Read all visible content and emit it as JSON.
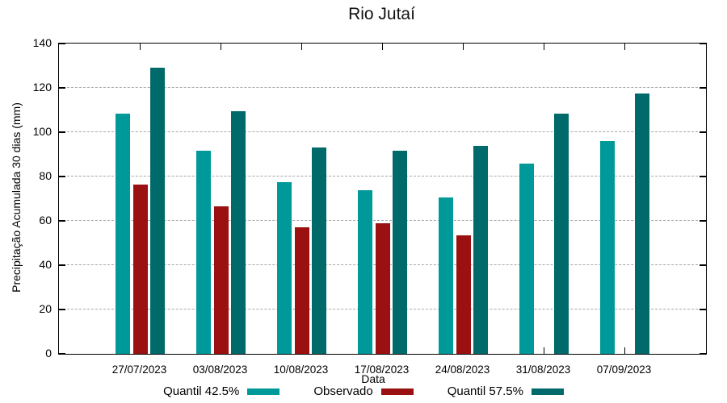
{
  "title": "Rio Jutaí",
  "chart_data": {
    "type": "bar",
    "title": "Rio Jutaí",
    "xlabel": "Data",
    "ylabel": "Precipitação Acumulada 30 dias (mm)",
    "ylim": [
      0,
      140
    ],
    "y_ticks": [
      0,
      20,
      40,
      60,
      80,
      100,
      120,
      140
    ],
    "grid": "horizontal dashed gridlines at each 20 mm",
    "legend_position": "bottom center, below x axis",
    "categories": [
      "27/07/2023",
      "03/08/2023",
      "10/08/2023",
      "17/08/2023",
      "24/08/2023",
      "31/08/2023",
      "07/09/2023"
    ],
    "series": [
      {
        "name": "Quantil 42.5%",
        "color": "#009999",
        "values": [
          108.5,
          91.5,
          77.5,
          74,
          70.5,
          86,
          96
        ]
      },
      {
        "name": "Observado",
        "color": "#9B1111",
        "values": [
          76.5,
          66.5,
          57,
          59,
          53.5,
          null,
          null
        ]
      },
      {
        "name": "Quantil 57.5%",
        "color": "#006A6A",
        "values": [
          129,
          109.5,
          93,
          91.5,
          94,
          108.5,
          117.5
        ]
      }
    ]
  }
}
